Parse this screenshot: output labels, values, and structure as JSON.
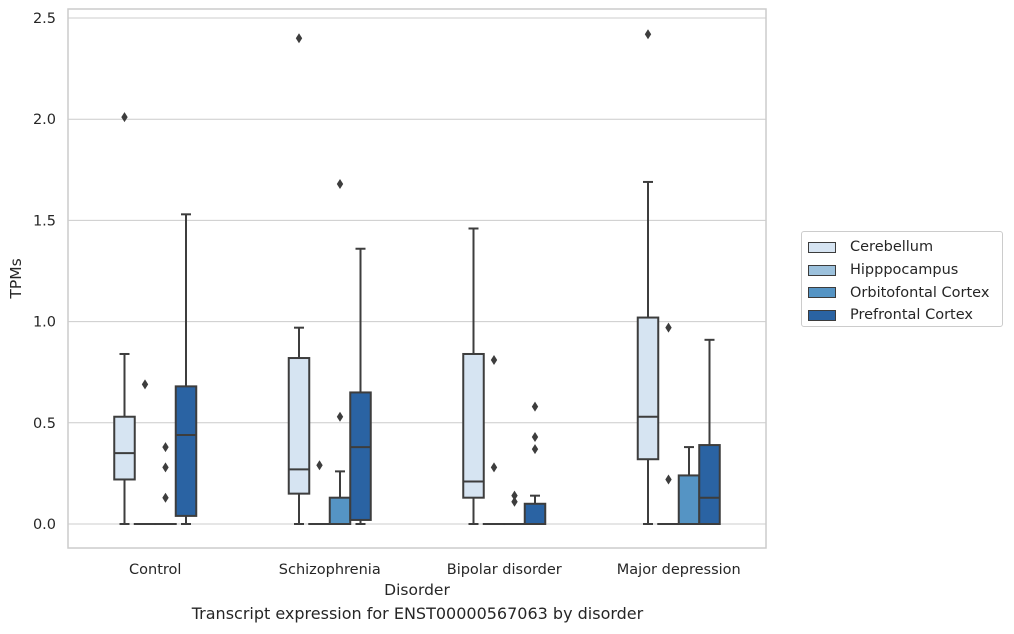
{
  "chart_data": {
    "type": "box",
    "xlabel": "Disorder",
    "ylabel": "TPMs",
    "ylim": [
      -0.12,
      2.55
    ],
    "yticks": [
      "0.0",
      "0.5",
      "1.0",
      "1.5",
      "2.0",
      "2.5"
    ],
    "grid": true,
    "legend_position": "right, outside",
    "categories": [
      "Control",
      "Schizophrenia",
      "Bipolar disorder",
      "Major depression"
    ],
    "series": [
      {
        "name": "Cerebellum",
        "color": "#d6e4f2",
        "boxes": [
          {
            "whislo": 0.0,
            "q1": 0.22,
            "med": 0.35,
            "q3": 0.53,
            "whishi": 0.84,
            "fliers": [
              2.01
            ]
          },
          {
            "whislo": 0.0,
            "q1": 0.15,
            "med": 0.27,
            "q3": 0.82,
            "whishi": 0.97,
            "fliers": [
              2.4
            ]
          },
          {
            "whislo": 0.0,
            "q1": 0.13,
            "med": 0.21,
            "q3": 0.84,
            "whishi": 1.46,
            "fliers": []
          },
          {
            "whislo": 0.0,
            "q1": 0.32,
            "med": 0.53,
            "q3": 1.02,
            "whishi": 1.69,
            "fliers": [
              2.42
            ]
          }
        ]
      },
      {
        "name": "Hipppocampus",
        "color": "#9cc1dc",
        "boxes": [
          {
            "whislo": 0.0,
            "q1": 0.0,
            "med": 0.0,
            "q3": 0.0,
            "whishi": 0.0,
            "fliers": [
              0.69
            ]
          },
          {
            "whislo": 0.0,
            "q1": 0.0,
            "med": 0.0,
            "q3": 0.0,
            "whishi": 0.0,
            "fliers": [
              0.29
            ]
          },
          {
            "whislo": 0.0,
            "q1": 0.0,
            "med": 0.0,
            "q3": 0.0,
            "whishi": 0.0,
            "fliers": [
              0.81,
              0.28
            ]
          },
          {
            "whislo": 0.0,
            "q1": 0.0,
            "med": 0.0,
            "q3": 0.0,
            "whishi": 0.0,
            "fliers": [
              0.97,
              0.22
            ]
          }
        ]
      },
      {
        "name": "Orbitofontal Cortex",
        "color": "#5594c4",
        "boxes": [
          {
            "whislo": 0.0,
            "q1": 0.0,
            "med": 0.0,
            "q3": 0.0,
            "whishi": 0.0,
            "fliers": [
              0.38,
              0.28,
              0.13
            ]
          },
          {
            "whislo": 0.0,
            "q1": 0.0,
            "med": 0.0,
            "q3": 0.13,
            "whishi": 0.26,
            "fliers": [
              1.68,
              0.53
            ]
          },
          {
            "whislo": 0.0,
            "q1": 0.0,
            "med": 0.0,
            "q3": 0.0,
            "whishi": 0.0,
            "fliers": [
              0.14,
              0.11
            ]
          },
          {
            "whislo": 0.0,
            "q1": 0.0,
            "med": 0.0,
            "q3": 0.24,
            "whishi": 0.38,
            "fliers": []
          }
        ]
      },
      {
        "name": "Prefrontal Cortex",
        "color": "#2a63a3",
        "boxes": [
          {
            "whislo": 0.0,
            "q1": 0.04,
            "med": 0.44,
            "q3": 0.68,
            "whishi": 1.53,
            "fliers": []
          },
          {
            "whislo": 0.0,
            "q1": 0.02,
            "med": 0.38,
            "q3": 0.65,
            "whishi": 1.36,
            "fliers": []
          },
          {
            "whislo": 0.0,
            "q1": 0.0,
            "med": 0.0,
            "q3": 0.1,
            "whishi": 0.14,
            "fliers": [
              0.58,
              0.43,
              0.37
            ]
          },
          {
            "whislo": 0.0,
            "q1": 0.0,
            "med": 0.13,
            "q3": 0.39,
            "whishi": 0.91,
            "fliers": []
          }
        ]
      }
    ]
  },
  "caption": "Transcript expression for ENST00000567063 by disorder"
}
